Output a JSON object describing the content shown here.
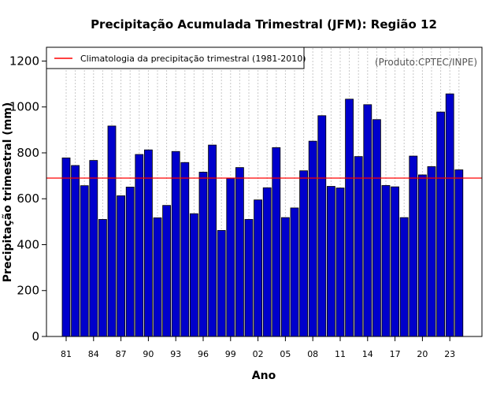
{
  "chart_data": {
    "type": "bar",
    "title": "Precipitação Acumulada Trimestral (JFM): Região 12",
    "xlabel": "Ano",
    "ylabel": "Precipitação trimestral (mm)",
    "credit": "(Produto:CPTEC/INPE)",
    "ylim": [
      0,
      1260
    ],
    "yticks": [
      0,
      200,
      400,
      600,
      800,
      1000,
      1200
    ],
    "grid": "vertical dotted",
    "legend_position": "top-left",
    "bar_color": "#0000cc",
    "climatology_color": "#ff0000",
    "categories": [
      "1981",
      "1982",
      "1983",
      "1984",
      "1985",
      "1986",
      "1987",
      "1988",
      "1989",
      "1990",
      "1991",
      "1992",
      "1993",
      "1994",
      "1995",
      "1996",
      "1997",
      "1998",
      "1999",
      "2000",
      "2001",
      "2002",
      "2003",
      "2004",
      "2005",
      "2006",
      "2007",
      "2008",
      "2009",
      "2010",
      "2011",
      "2012",
      "2013",
      "2014",
      "2015",
      "2016",
      "2017",
      "2018",
      "2019",
      "2020",
      "2021",
      "2022",
      "2023",
      "2024"
    ],
    "xtick_labels": [
      "81",
      "84",
      "87",
      "90",
      "93",
      "96",
      "99",
      "02",
      "05",
      "08",
      "11",
      "14",
      "17",
      "20",
      "23"
    ],
    "xtick_indices": [
      0,
      3,
      6,
      9,
      12,
      15,
      18,
      21,
      24,
      27,
      30,
      33,
      36,
      39,
      42
    ],
    "series": [
      {
        "name": "Precipitação trimestral",
        "values": [
          778,
          745,
          657,
          767,
          510,
          917,
          613,
          651,
          793,
          813,
          517,
          571,
          806,
          758,
          535,
          716,
          834,
          462,
          689,
          736,
          510,
          595,
          648,
          823,
          518,
          560,
          722,
          851,
          962,
          654,
          647,
          1034,
          784,
          1010,
          945,
          658,
          652,
          518,
          786,
          704,
          740,
          978,
          1057,
          726
        ]
      }
    ],
    "climatology": {
      "label": "Climatologia da precipitação trimestral (1981-2010)",
      "value": 690
    }
  }
}
